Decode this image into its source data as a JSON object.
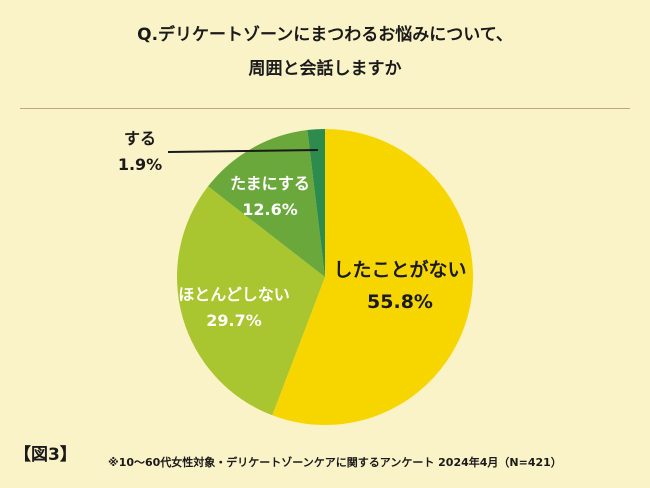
{
  "title": {
    "line1": "Q.デリケートゾーンにまつわるお悩みについて、",
    "line2": "周囲と会話しますか"
  },
  "figure_label": "【図3】",
  "footnote": "※10～60代女性対象・デリケートゾーンケアに関するアンケート 2024年4月（N=421）",
  "colors": {
    "background": "#fbf3c8",
    "divider": "#b9ac80"
  },
  "chart_data": {
    "type": "pie",
    "start_angle": "12 o'clock",
    "direction": "clockwise",
    "slices": [
      {
        "label": "したことがない",
        "value": 55.8,
        "value_label": "55.8%",
        "color": "#f7d600",
        "text_color": "#1a1a1a"
      },
      {
        "label": "ほとんどしない",
        "value": 29.7,
        "value_label": "29.7%",
        "color": "#a9c52f",
        "text_color": "#ffffff"
      },
      {
        "label": "たまにする",
        "value": 12.6,
        "value_label": "12.6%",
        "color": "#6ba83c",
        "text_color": "#ffffff"
      },
      {
        "label": "する",
        "value": 1.9,
        "value_label": "1.9%",
        "color": "#2e8b4e",
        "text_color": "#1a1a1a"
      }
    ]
  }
}
